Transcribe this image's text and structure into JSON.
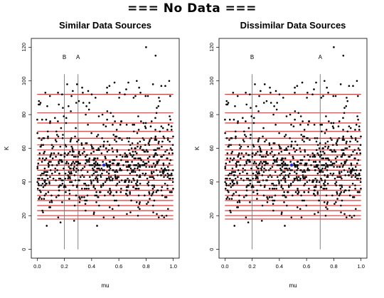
{
  "page_title": "=== No Data ===",
  "colors": {
    "points": "#000000",
    "highlight_point": "#1f2fd6",
    "threshold_lines": "#e31a1c",
    "vertical_lines": "#777777",
    "axes": "#000000"
  },
  "chart_data": [
    {
      "type": "scatter",
      "title": "Similar Data Sources",
      "xlabel": "mu",
      "ylabel": "K",
      "xlim": [
        0.0,
        1.0
      ],
      "ylim": [
        0,
        120
      ],
      "xticks": [
        "0.0",
        "0.2",
        "0.4",
        "0.6",
        "0.8",
        "1.0"
      ],
      "yticks": [
        "0",
        "20",
        "40",
        "60",
        "80",
        "100",
        "120"
      ],
      "grid": false,
      "vertical_lines": [
        {
          "label": "B",
          "x": 0.2
        },
        {
          "label": "A",
          "x": 0.3
        }
      ],
      "horizontal_lines": [
        18,
        20,
        23,
        26,
        29,
        32,
        35,
        38,
        41,
        44,
        47,
        50,
        53,
        56,
        59,
        62,
        66,
        70,
        75,
        81,
        92
      ],
      "highlight_point": {
        "x": 0.49,
        "y": 50
      },
      "points_summary": "~800 scattered points; mu uniform in [0,1], K concentrated 20–70, sparse up to ~120",
      "outliers": [
        {
          "x": 0.8,
          "y": 120
        },
        {
          "x": 0.87,
          "y": 115
        },
        {
          "x": 0.97,
          "y": 100
        },
        {
          "x": 0.07,
          "y": 14
        },
        {
          "x": 0.44,
          "y": 14
        },
        {
          "x": 0.95,
          "y": 20
        }
      ]
    },
    {
      "type": "scatter",
      "title": "Dissimilar Data Sources",
      "xlabel": "mu",
      "ylabel": "K",
      "xlim": [
        0.0,
        1.0
      ],
      "ylim": [
        0,
        120
      ],
      "xticks": [
        "0.0",
        "0.2",
        "0.4",
        "0.6",
        "0.8",
        "1.0"
      ],
      "yticks": [
        "0",
        "20",
        "40",
        "60",
        "80",
        "100",
        "120"
      ],
      "grid": false,
      "vertical_lines": [
        {
          "label": "B",
          "x": 0.2
        },
        {
          "label": "A",
          "x": 0.7
        }
      ],
      "horizontal_lines": [
        18,
        20,
        23,
        26,
        29,
        32,
        35,
        38,
        41,
        44,
        47,
        50,
        53,
        56,
        59,
        62,
        66,
        70,
        75,
        81,
        92
      ],
      "highlight_point": {
        "x": 0.49,
        "y": 50
      },
      "points_summary": "~800 scattered points; mu uniform in [0,1], K concentrated 20–70, sparse up to ~120",
      "outliers": [
        {
          "x": 0.8,
          "y": 120
        },
        {
          "x": 0.87,
          "y": 115
        },
        {
          "x": 0.97,
          "y": 100
        },
        {
          "x": 0.07,
          "y": 14
        },
        {
          "x": 0.44,
          "y": 14
        },
        {
          "x": 0.95,
          "y": 20
        }
      ]
    }
  ]
}
